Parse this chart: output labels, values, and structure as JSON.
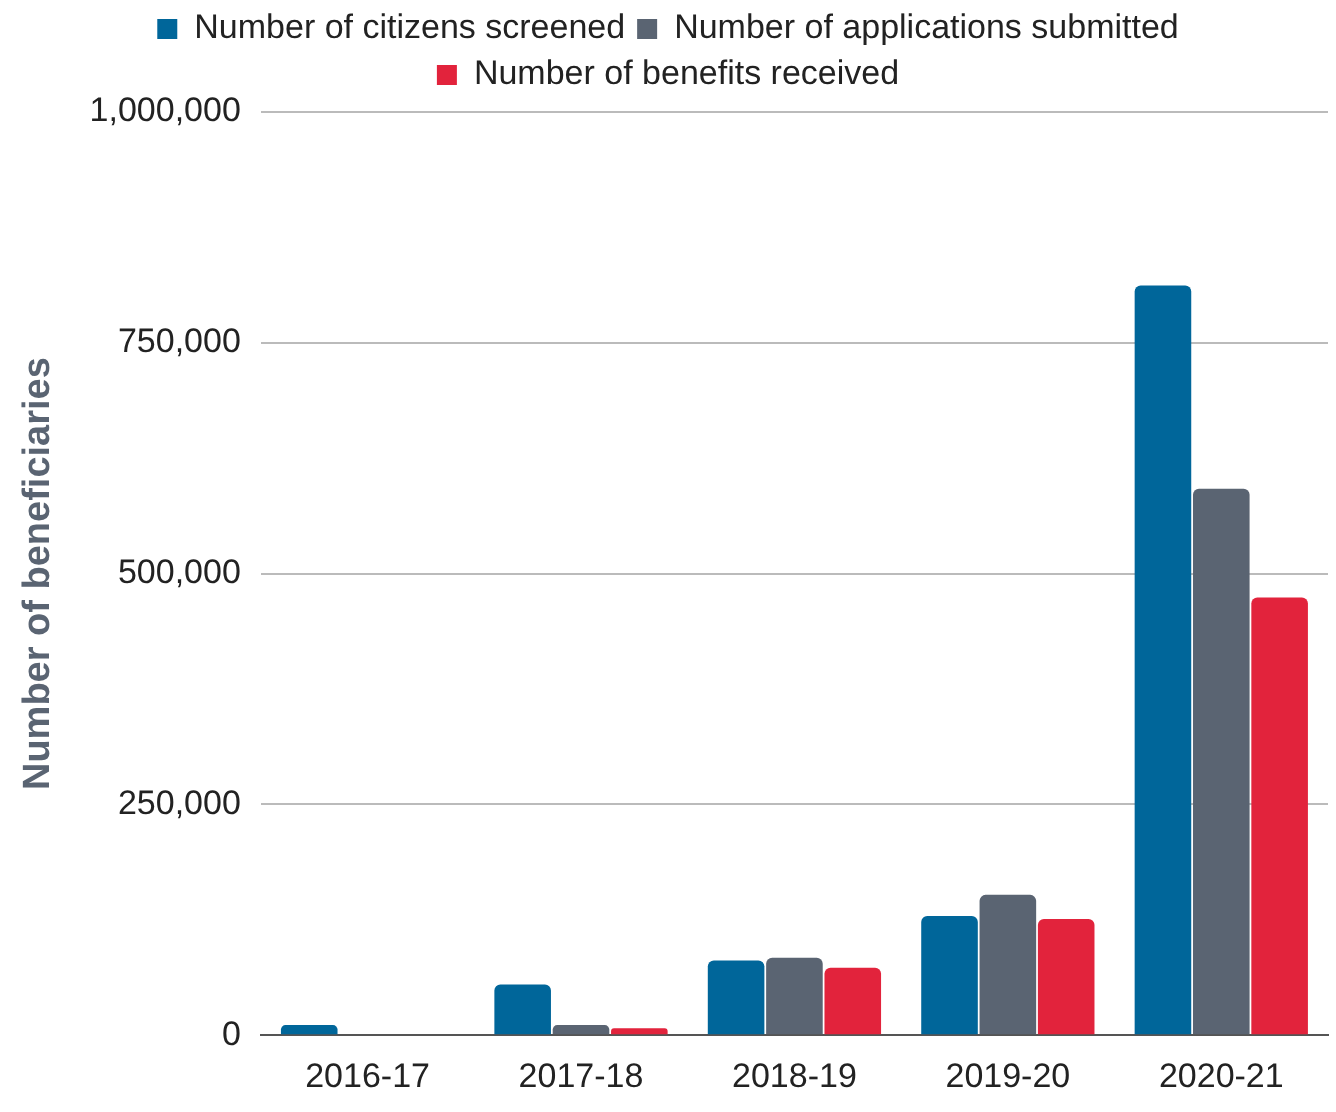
{
  "chart_data": {
    "type": "bar",
    "ylabel": "Number of beneficiaries",
    "categories": [
      "2016-17",
      "2017-18",
      "2018-19",
      "2019-20",
      "2020-21"
    ],
    "series": [
      {
        "name": "Number of citizens screened",
        "color": "#00669a",
        "values": [
          11000,
          55000,
          81000,
          129000,
          812000
        ]
      },
      {
        "name": "Number of applications submitted",
        "color": "#5a6472",
        "values": [
          1000,
          11000,
          84000,
          152000,
          592000
        ]
      },
      {
        "name": "Number of benefits received",
        "color": "#e2233c",
        "values": [
          1000,
          7500,
          73000,
          126000,
          474000
        ]
      }
    ],
    "ylim": [
      0,
      1000000
    ],
    "yticks": [
      {
        "value": 0,
        "label": "0"
      },
      {
        "value": 250000,
        "label": "250,000"
      },
      {
        "value": 500000,
        "label": "500,000"
      },
      {
        "value": 750000,
        "label": "750,000"
      },
      {
        "value": 1000000,
        "label": "1,000,000"
      }
    ],
    "grid": "y",
    "legend": "top"
  }
}
